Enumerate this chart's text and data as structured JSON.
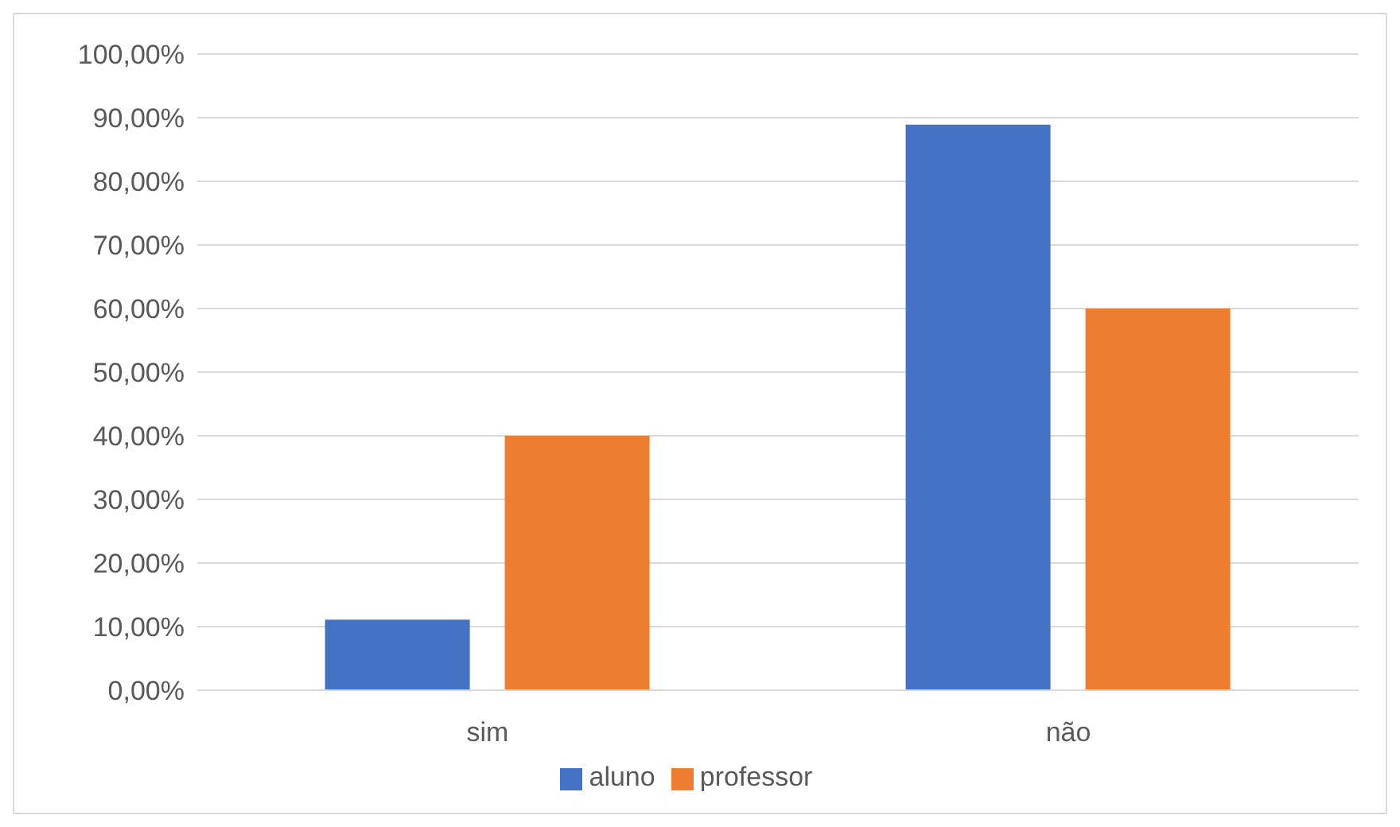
{
  "chart_data": {
    "type": "bar",
    "categories": [
      "sim",
      "não"
    ],
    "series": [
      {
        "name": "aluno",
        "color": "#4472c4",
        "values": [
          11.1,
          88.9
        ]
      },
      {
        "name": "professor",
        "color": "#ed7d31",
        "values": [
          40,
          60
        ]
      }
    ],
    "ylim": [
      0,
      100
    ],
    "yticks": [
      {
        "value": 0,
        "label": "0,00%"
      },
      {
        "value": 10,
        "label": "10,00%"
      },
      {
        "value": 20,
        "label": "20,00%"
      },
      {
        "value": 30,
        "label": "30,00%"
      },
      {
        "value": 40,
        "label": "40,00%"
      },
      {
        "value": 50,
        "label": "50,00%"
      },
      {
        "value": 60,
        "label": "60,00%"
      },
      {
        "value": 70,
        "label": "70,00%"
      },
      {
        "value": 80,
        "label": "80,00%"
      },
      {
        "value": 90,
        "label": "90,00%"
      },
      {
        "value": 100,
        "label": "100,00%"
      }
    ],
    "grid": "y",
    "legend": "bottom"
  }
}
